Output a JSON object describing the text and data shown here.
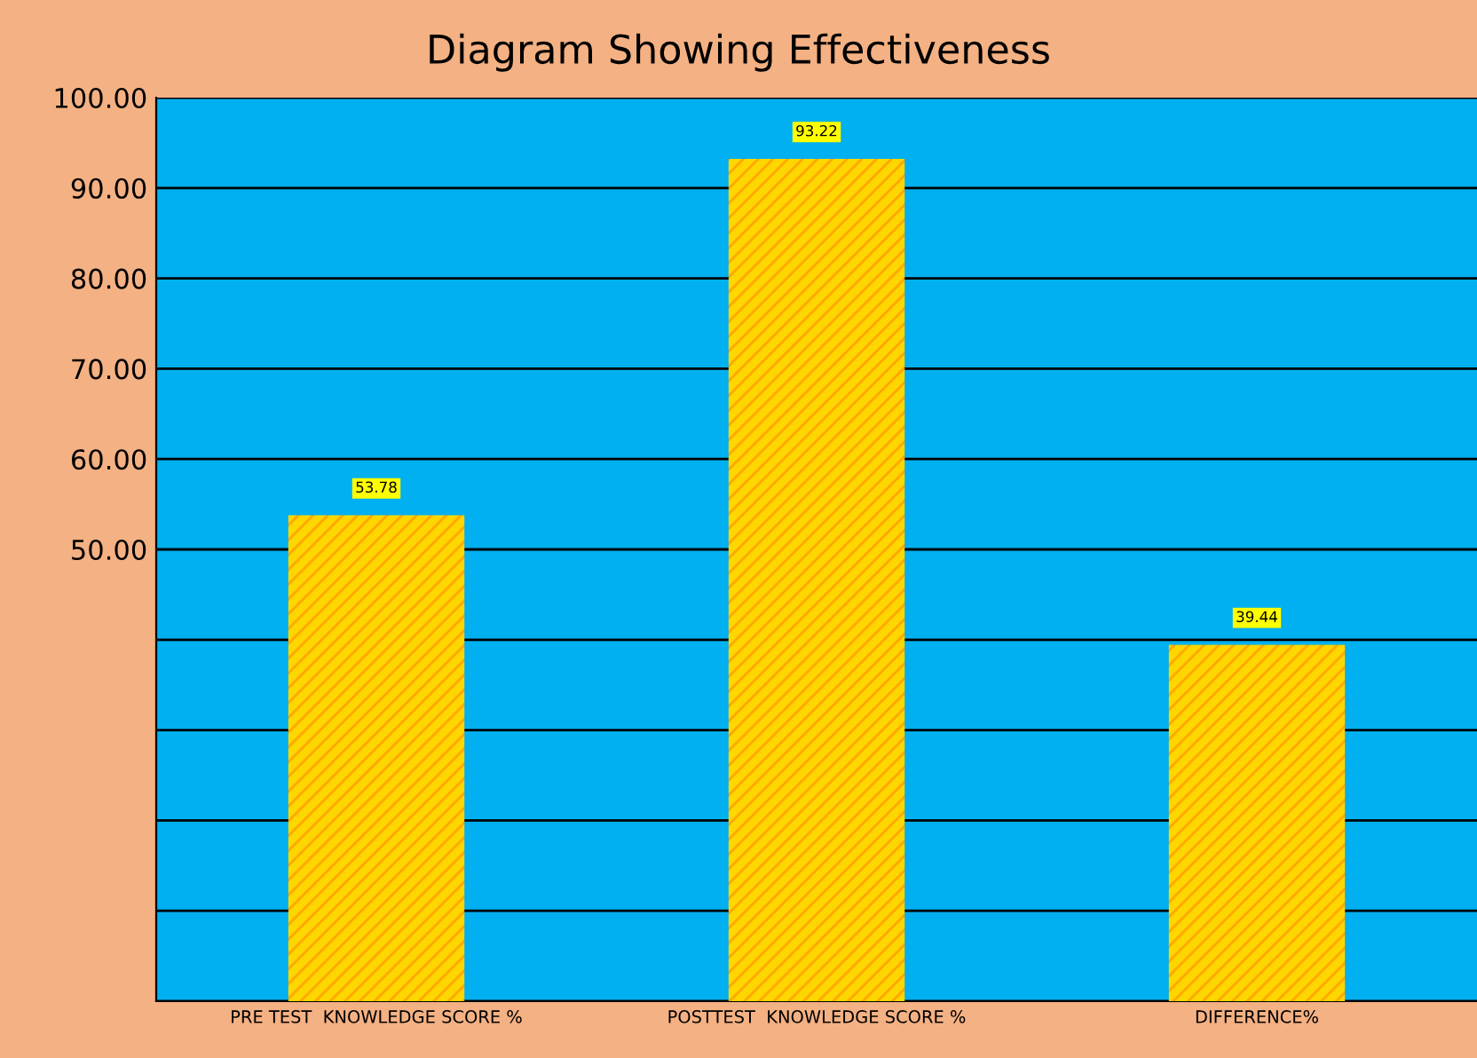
{
  "chart_data": {
    "type": "bar",
    "title": "Diagram Showing Effectiveness",
    "categories": [
      "PRE TEST  KNOWLEDGE SCORE %",
      "POSTTEST  KNOWLEDGE SCORE %",
      "DIFFERENCE%"
    ],
    "values": [
      53.78,
      93.22,
      39.44
    ],
    "color": "#ffd700",
    "data_labels": true,
    "ylim": [
      0,
      100
    ],
    "yticks": [
      {
        "value": 0,
        "label": null
      },
      {
        "value": 10,
        "label": null
      },
      {
        "value": 20,
        "label": null
      },
      {
        "value": 30,
        "label": null
      },
      {
        "value": 40,
        "label": null
      },
      {
        "value": 50,
        "label": "50.00"
      },
      {
        "value": 60,
        "label": "60.00"
      },
      {
        "value": 70,
        "label": "70.00"
      },
      {
        "value": 80,
        "label": "80.00"
      },
      {
        "value": 90,
        "label": "90.00"
      },
      {
        "value": 100,
        "label": "100.00"
      }
    ],
    "grid": "y"
  }
}
